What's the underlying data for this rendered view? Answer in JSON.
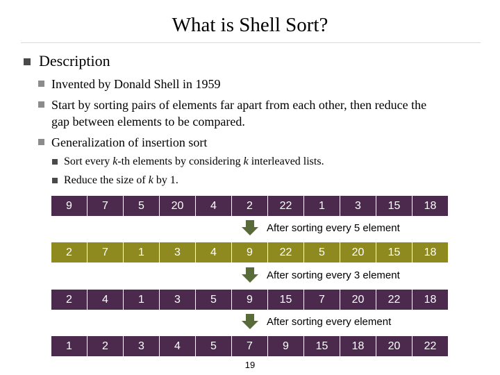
{
  "title": "What is Shell Sort?",
  "bullets": {
    "description": "Description",
    "invented": "Invented by Donald Shell in 1959",
    "start_line1": "Start by sorting pairs of elements far apart from each other, then reduce the",
    "start_line2": "gap between elements to be compared.",
    "generalization": "Generalization of insertion sort",
    "sub1_a": "Sort every ",
    "sub1_k": "k",
    "sub1_b": "-th elements by considering ",
    "sub1_k2": "k",
    "sub1_c": " interleaved lists.",
    "sub2_a": "Reduce the size of ",
    "sub2_k": "k",
    "sub2_b": " by 1."
  },
  "arrays": [
    {
      "values": [
        "9",
        "7",
        "5",
        "20",
        "4",
        "2",
        "22",
        "1",
        "3",
        "15",
        "18"
      ],
      "color": "#4b2a4e"
    },
    {
      "values": [
        "2",
        "7",
        "1",
        "3",
        "4",
        "9",
        "22",
        "5",
        "20",
        "15",
        "18"
      ],
      "color": "#8f8a1f"
    },
    {
      "values": [
        "2",
        "4",
        "1",
        "3",
        "5",
        "9",
        "15",
        "7",
        "20",
        "22",
        "18"
      ],
      "color": "#4b2a4e"
    },
    {
      "values": [
        "1",
        "2",
        "3",
        "4",
        "5",
        "7",
        "9",
        "15",
        "18",
        "20",
        "22"
      ],
      "color": "#4b2a4e"
    }
  ],
  "steps": [
    "After sorting every 5 element",
    "After sorting every 3 element",
    "After sorting every element"
  ],
  "page_number": "19",
  "icons": {
    "step_arrow": "down-arrow-icon",
    "bullet": "square-bullet-icon"
  }
}
